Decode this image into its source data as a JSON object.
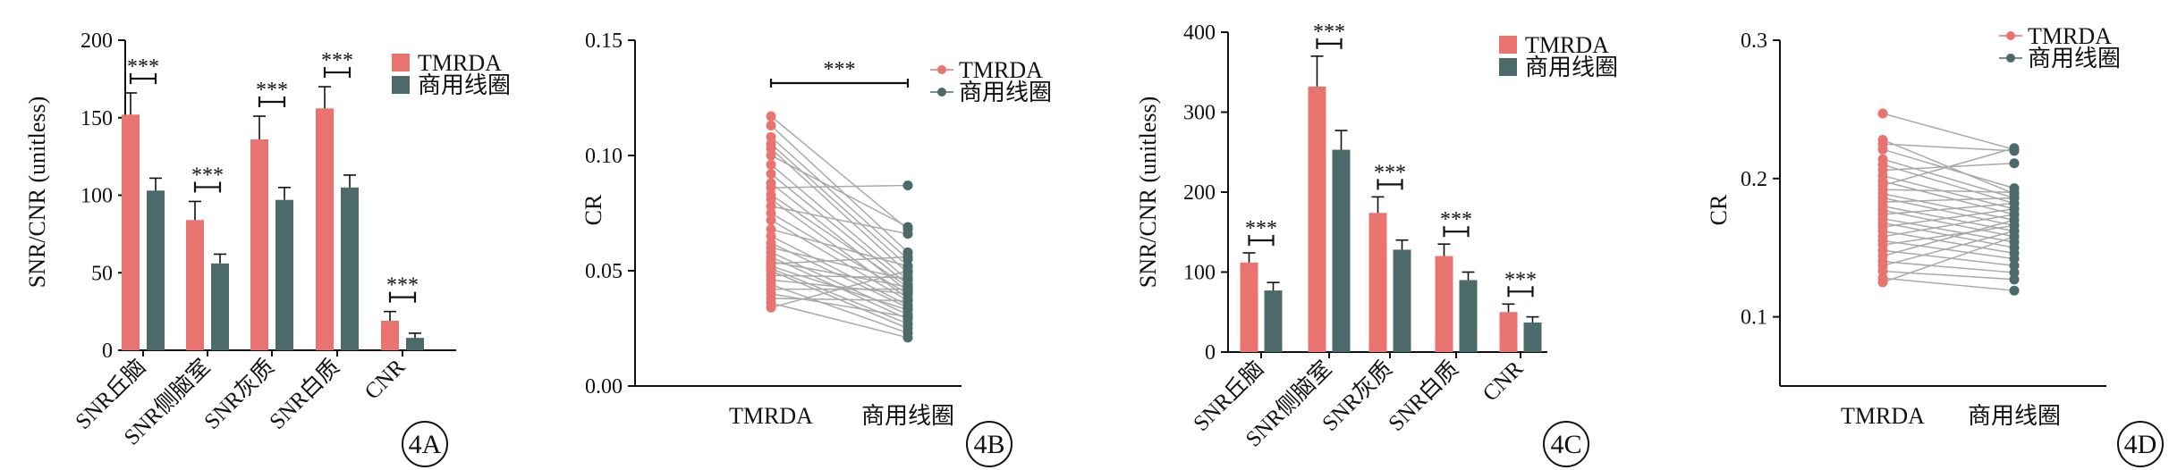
{
  "colors": {
    "tmrda": "#e8736f",
    "commercial": "#4c6a6a",
    "pair_line": "#a9a9a9"
  },
  "chart_data": [
    {
      "id": "4A",
      "type": "bar",
      "panel_label": "4A",
      "ylabel": "SNR/CNR (unitless)",
      "ylim": [
        0,
        200
      ],
      "yticks": [
        "0",
        "50",
        "100",
        "150",
        "200"
      ],
      "categories": [
        "SNR丘脑",
        "SNR侧脑室",
        "SNR灰质",
        "SNR白质",
        "CNR"
      ],
      "series": [
        {
          "name": "TMRDA",
          "values": [
            152,
            84,
            136,
            156,
            19
          ],
          "errors": [
            14,
            12,
            15,
            14,
            6
          ]
        },
        {
          "name": "商用线圈",
          "values": [
            103,
            56,
            97,
            105,
            8
          ],
          "errors": [
            8,
            6,
            8,
            8,
            3
          ]
        }
      ],
      "significance": [
        "***",
        "***",
        "***",
        "***",
        "***"
      ],
      "legend": [
        "TMRDA",
        "商用线圈"
      ],
      "legend_position": "top-right"
    },
    {
      "id": "4B",
      "type": "scatter",
      "panel_label": "4B",
      "ylabel": "CR",
      "ylim": [
        0,
        0.15
      ],
      "yticks": [
        "0.00",
        "0.05",
        "0.10",
        "0.15"
      ],
      "categories": [
        "TMRDA",
        "商用线圈"
      ],
      "significance": "***",
      "legend": [
        "TMRDA",
        "商用线圈"
      ],
      "legend_position": "top-right",
      "pairs": [
        [
          0.117,
          0.068
        ],
        [
          0.113,
          0.058
        ],
        [
          0.108,
          0.055
        ],
        [
          0.105,
          0.052
        ],
        [
          0.103,
          0.049
        ],
        [
          0.1,
          0.069
        ],
        [
          0.096,
          0.046
        ],
        [
          0.092,
          0.044
        ],
        [
          0.088,
          0.041
        ],
        [
          0.086,
          0.087
        ],
        [
          0.083,
          0.043
        ],
        [
          0.081,
          0.038
        ],
        [
          0.078,
          0.066
        ],
        [
          0.075,
          0.04
        ],
        [
          0.072,
          0.037
        ],
        [
          0.068,
          0.052
        ],
        [
          0.065,
          0.035
        ],
        [
          0.062,
          0.034
        ],
        [
          0.06,
          0.046
        ],
        [
          0.058,
          0.031
        ],
        [
          0.056,
          0.029
        ],
        [
          0.054,
          0.043
        ],
        [
          0.053,
          0.056
        ],
        [
          0.052,
          0.033
        ],
        [
          0.051,
          0.027
        ],
        [
          0.05,
          0.025
        ],
        [
          0.048,
          0.047
        ],
        [
          0.046,
          0.04
        ],
        [
          0.044,
          0.023
        ],
        [
          0.042,
          0.042
        ],
        [
          0.04,
          0.03
        ],
        [
          0.038,
          0.037
        ],
        [
          0.036,
          0.021
        ],
        [
          0.034,
          0.05
        ]
      ]
    },
    {
      "id": "4C",
      "type": "bar",
      "panel_label": "4C",
      "ylabel": "SNR/CNR (unitless)",
      "ylim": [
        0,
        400
      ],
      "yticks": [
        "0",
        "100",
        "200",
        "300",
        "400"
      ],
      "categories": [
        "SNR丘脑",
        "SNR侧脑室",
        "SNR灰质",
        "SNR白质",
        "CNR"
      ],
      "series": [
        {
          "name": "TMRDA",
          "values": [
            112,
            332,
            174,
            120,
            50
          ],
          "errors": [
            12,
            38,
            20,
            15,
            10
          ]
        },
        {
          "name": "商用线圈",
          "values": [
            77,
            253,
            128,
            90,
            37
          ],
          "errors": [
            10,
            24,
            12,
            10,
            7
          ]
        }
      ],
      "significance": [
        "***",
        "***",
        "***",
        "***",
        "***"
      ],
      "legend": [
        "TMRDA",
        "商用线圈"
      ],
      "legend_position": "top-right"
    },
    {
      "id": "4D",
      "type": "scatter",
      "panel_label": "4D",
      "ylabel": "CR",
      "ylim": [
        0.05,
        0.3
      ],
      "yticks": [
        "0.1",
        "0.2",
        "0.3"
      ],
      "categories": [
        "TMRDA",
        "商用线圈"
      ],
      "legend": [
        "TMRDA",
        "商用线圈"
      ],
      "legend_position": "top-right",
      "pairs": [
        [
          0.247,
          0.221
        ],
        [
          0.228,
          0.189
        ],
        [
          0.225,
          0.22
        ],
        [
          0.221,
          0.193
        ],
        [
          0.214,
          0.186
        ],
        [
          0.21,
          0.182
        ],
        [
          0.206,
          0.211
        ],
        [
          0.202,
          0.178
        ],
        [
          0.198,
          0.174
        ],
        [
          0.195,
          0.222
        ],
        [
          0.192,
          0.19
        ],
        [
          0.189,
          0.17
        ],
        [
          0.186,
          0.166
        ],
        [
          0.183,
          0.186
        ],
        [
          0.18,
          0.162
        ],
        [
          0.177,
          0.158
        ],
        [
          0.174,
          0.182
        ],
        [
          0.171,
          0.154
        ],
        [
          0.168,
          0.15
        ],
        [
          0.165,
          0.178
        ],
        [
          0.162,
          0.146
        ],
        [
          0.158,
          0.174
        ],
        [
          0.155,
          0.142
        ],
        [
          0.152,
          0.166
        ],
        [
          0.148,
          0.137
        ],
        [
          0.144,
          0.17
        ],
        [
          0.14,
          0.132
        ],
        [
          0.137,
          0.162
        ],
        [
          0.133,
          0.127
        ],
        [
          0.128,
          0.119
        ],
        [
          0.125,
          0.158
        ]
      ]
    }
  ]
}
